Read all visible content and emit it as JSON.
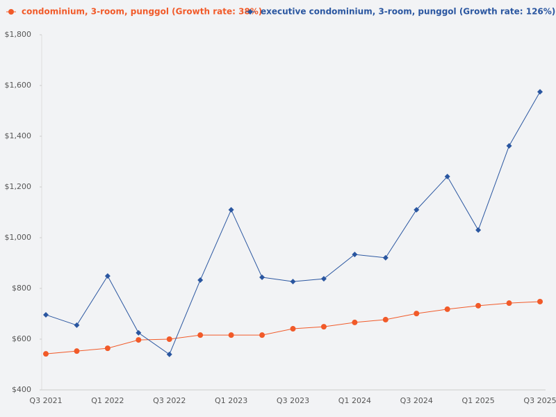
{
  "chart_data": {
    "type": "line",
    "categories": [
      "Q3 2021",
      null,
      "Q1 2022",
      null,
      "Q3 2022",
      null,
      "Q1 2023",
      null,
      "Q3 2023",
      null,
      "Q1 2024",
      null,
      "Q3 2024",
      null,
      "Q1 2025",
      null,
      "Q3 2025"
    ],
    "series": [
      {
        "name": "condominium, 3-room, punggol (Growth rate: 38%)",
        "color": "#f15a29",
        "marker": "circle",
        "values": [
          542,
          553,
          564,
          597,
          600,
          616,
          616,
          616,
          641,
          649,
          666,
          677,
          701,
          718,
          732,
          742,
          748
        ]
      },
      {
        "name": "executive condominium, 3-room, punggol (Growth rate: 126%)",
        "color": "#2a56a0",
        "marker": "diamond",
        "values": [
          696,
          655,
          849,
          625,
          540,
          833,
          1110,
          844,
          827,
          838,
          934,
          921,
          1110,
          1241,
          1030,
          1362,
          1575
        ]
      }
    ],
    "ylim": [
      400,
      1800
    ],
    "yticks": [
      {
        "value": 400,
        "label": "$400"
      },
      {
        "value": 600,
        "label": "$600"
      },
      {
        "value": 800,
        "label": "$800"
      },
      {
        "value": 1000,
        "label": "$1,000"
      },
      {
        "value": 1200,
        "label": "$1,200"
      },
      {
        "value": 1400,
        "label": "$1,400"
      },
      {
        "value": 1600,
        "label": "$1,600"
      },
      {
        "value": 1800,
        "label": "$1,800"
      }
    ],
    "grid": false
  }
}
